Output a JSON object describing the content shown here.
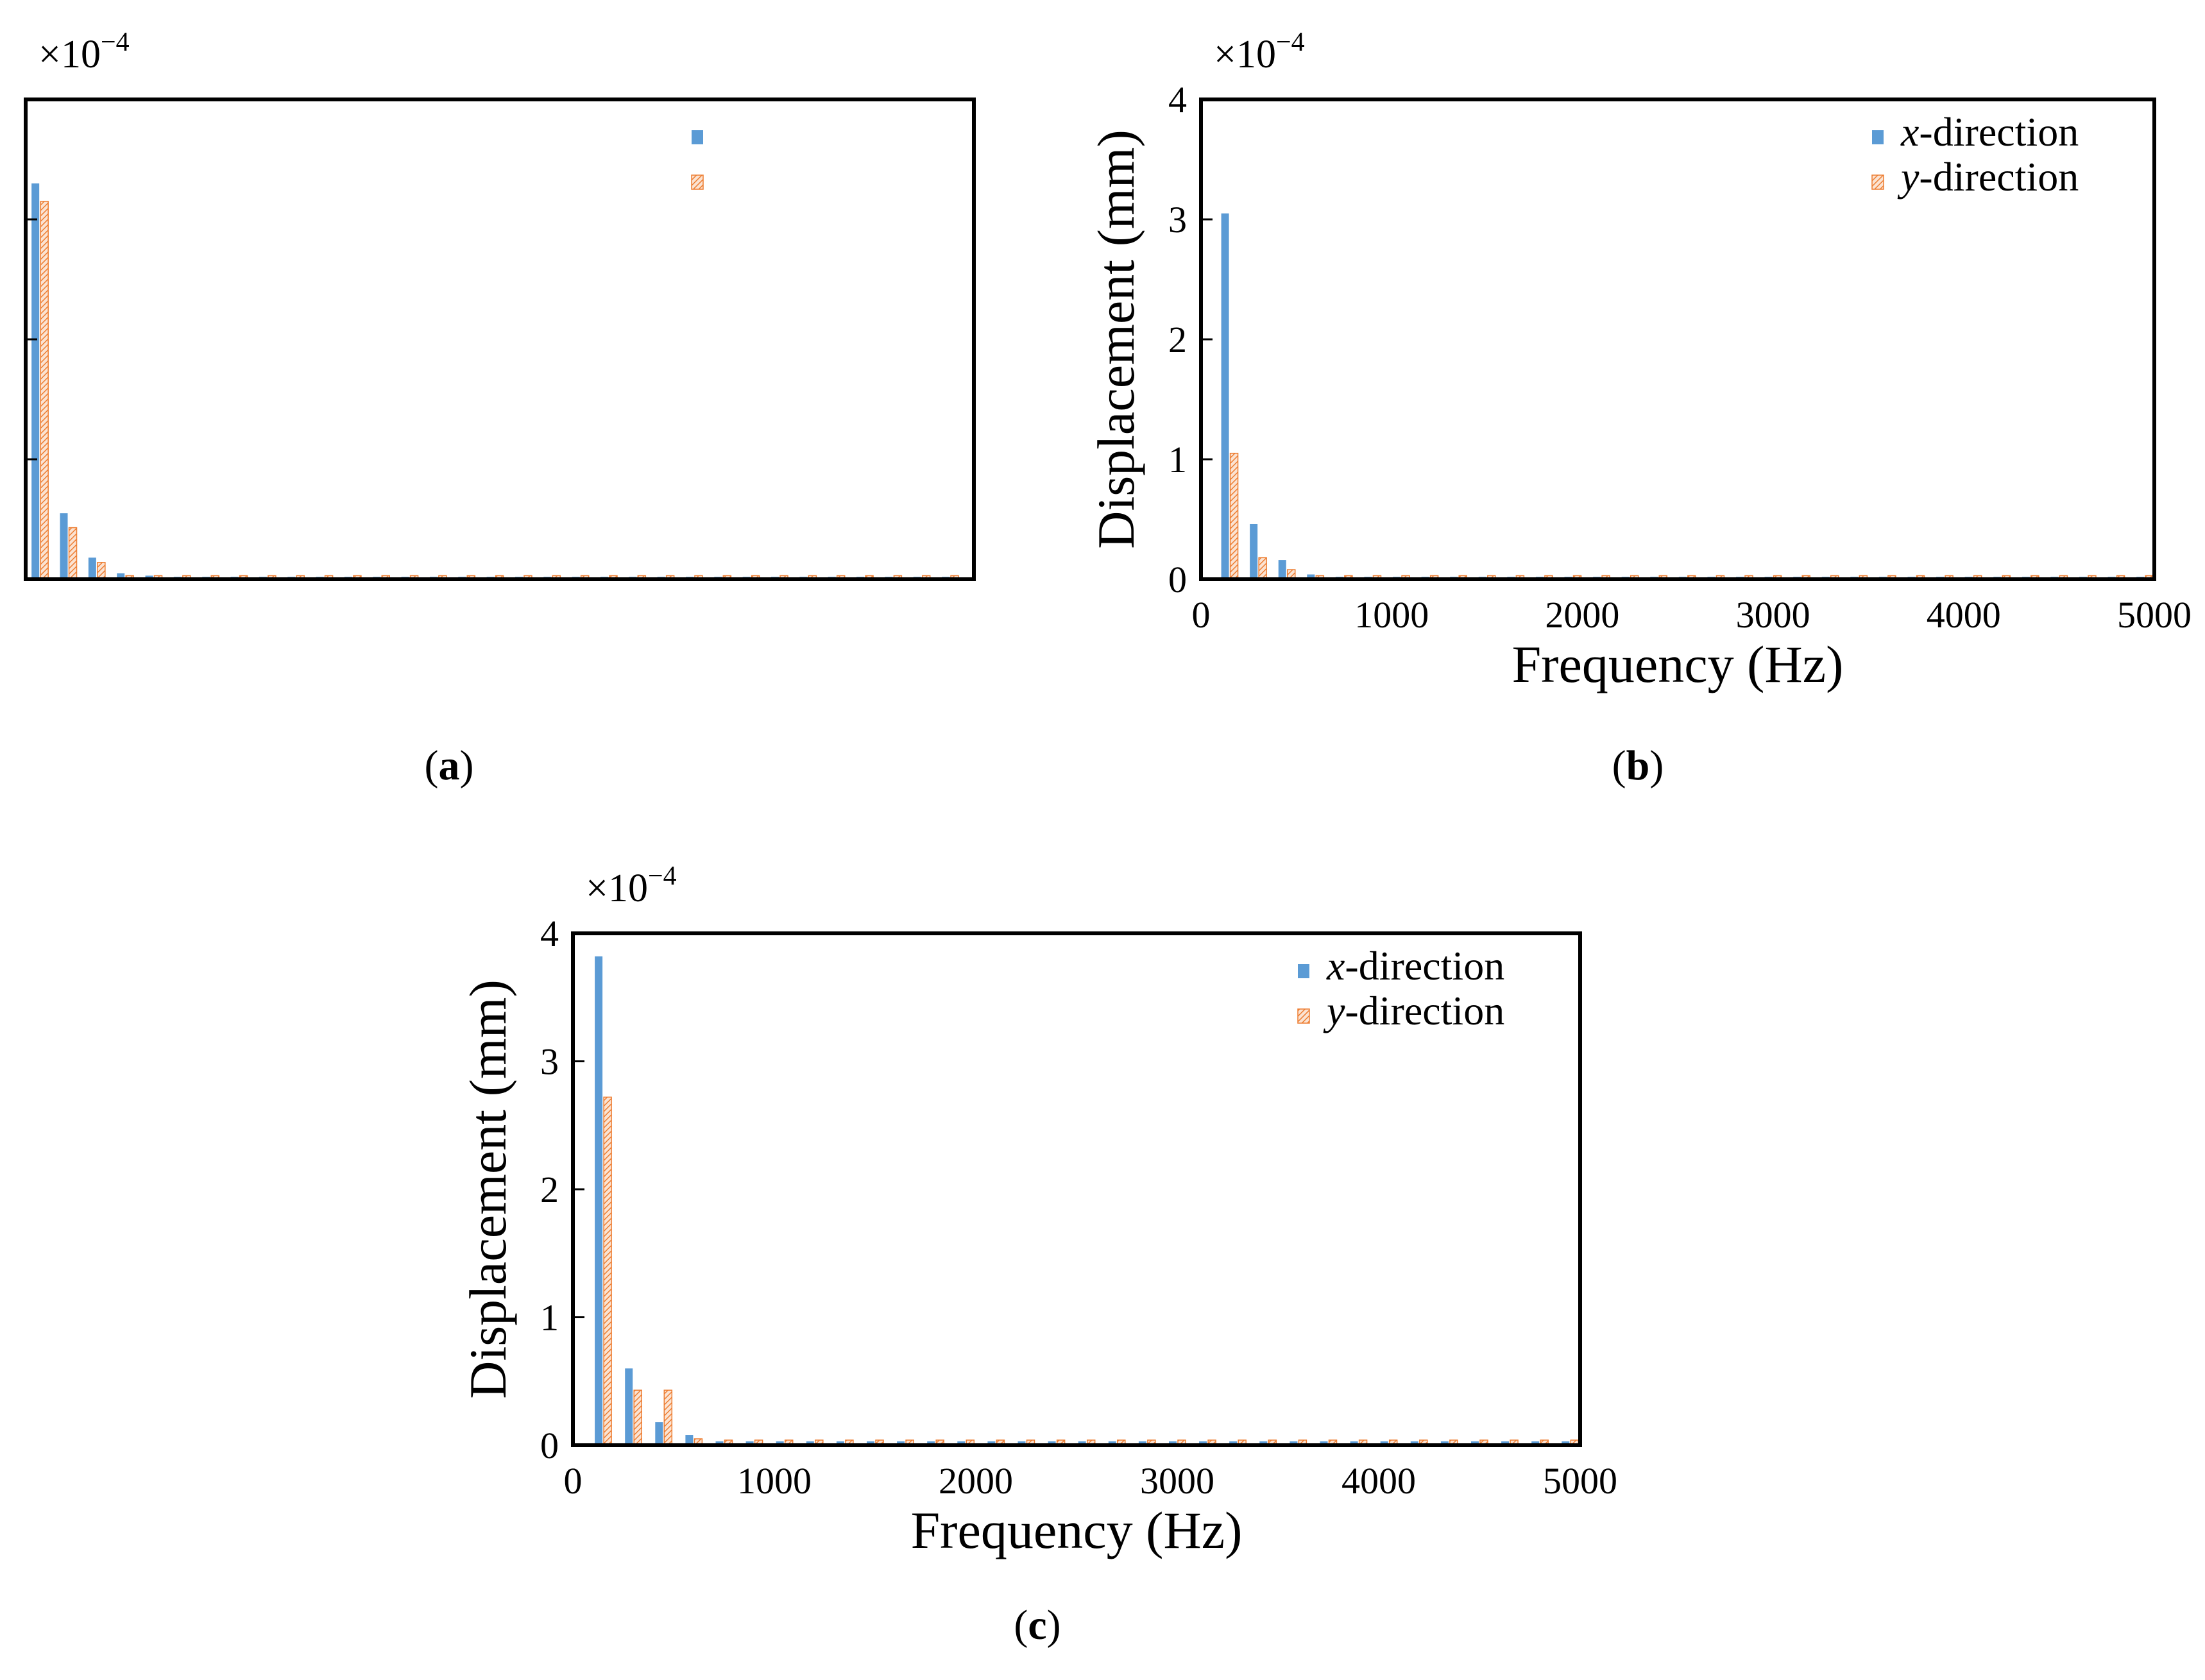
{
  "colors": {
    "x_series": "#5B9BD5",
    "y_series": "#ED7D31",
    "frame": "#000000"
  },
  "chart_data": [
    {
      "panel": "a",
      "caption_letter": "a",
      "type": "bar",
      "title": "",
      "exponent_label": "×10",
      "exponent_power": "−4",
      "xlabel": "",
      "ylabel": "",
      "xlim": [
        0,
        5000
      ],
      "ylim": [
        0,
        4
      ],
      "xticks": [],
      "yticks": [
        1,
        2,
        3
      ],
      "show_tick_labels": false,
      "legend_position": "top-right",
      "bin_width": 150,
      "series": [
        {
          "name": "",
          "fill": "solid",
          "x": [
            75,
            225,
            375,
            525,
            675,
            825,
            975,
            1125,
            1275,
            1425,
            1575,
            1725,
            1875,
            2025,
            2175,
            2325,
            2475,
            2625,
            2775,
            2925,
            3075,
            3225,
            3375,
            3525,
            3675,
            3825,
            3975,
            4125,
            4275,
            4425,
            4575,
            4725,
            4875
          ],
          "values": [
            3.3,
            0.55,
            0.18,
            0.05,
            0.03,
            0.02,
            0.02,
            0.02,
            0.02,
            0.02,
            0.02,
            0.02,
            0.02,
            0.02,
            0.02,
            0.02,
            0.02,
            0.02,
            0.02,
            0.02,
            0.02,
            0.02,
            0.02,
            0.02,
            0.02,
            0.02,
            0.02,
            0.02,
            0.02,
            0.02,
            0.02,
            0.02,
            0.02
          ]
        },
        {
          "name": "",
          "fill": "hatched",
          "x": [
            75,
            225,
            375,
            525,
            675,
            825,
            975,
            1125,
            1275,
            1425,
            1575,
            1725,
            1875,
            2025,
            2175,
            2325,
            2475,
            2625,
            2775,
            2925,
            3075,
            3225,
            3375,
            3525,
            3675,
            3825,
            3975,
            4125,
            4275,
            4425,
            4575,
            4725,
            4875
          ],
          "values": [
            3.15,
            0.43,
            0.14,
            0.03,
            0.03,
            0.03,
            0.03,
            0.03,
            0.03,
            0.03,
            0.03,
            0.03,
            0.03,
            0.03,
            0.03,
            0.03,
            0.03,
            0.03,
            0.03,
            0.03,
            0.03,
            0.03,
            0.03,
            0.03,
            0.03,
            0.03,
            0.03,
            0.03,
            0.03,
            0.03,
            0.03,
            0.03,
            0.03
          ]
        }
      ]
    },
    {
      "panel": "b",
      "caption_letter": "b",
      "type": "bar",
      "title": "",
      "exponent_label": "×10",
      "exponent_power": "−4",
      "xlabel": "Frequency (Hz)",
      "ylabel": "Displacement (mm)",
      "xlim": [
        0,
        5000
      ],
      "ylim": [
        0,
        4
      ],
      "xticks": [
        0,
        1000,
        2000,
        3000,
        4000,
        5000
      ],
      "xtick_labels": [
        "0",
        "1000",
        "2000",
        "3000",
        "4000",
        "5000"
      ],
      "yticks": [
        0,
        1,
        2,
        3,
        4
      ],
      "ytick_labels": [
        "0",
        "1",
        "2",
        "3",
        "4"
      ],
      "show_tick_labels": true,
      "legend_position": "top-right",
      "bin_width": 150,
      "series": [
        {
          "name": "x-direction",
          "name_var": "x",
          "name_rest": "-direction",
          "fill": "solid",
          "x": [
            150,
            300,
            450,
            600,
            750,
            900,
            1050,
            1200,
            1350,
            1500,
            1650,
            1800,
            1950,
            2100,
            2250,
            2400,
            2550,
            2700,
            2850,
            3000,
            3150,
            3300,
            3450,
            3600,
            3750,
            3900,
            4050,
            4200,
            4350,
            4500,
            4650,
            4800,
            4950
          ],
          "values": [
            3.05,
            0.46,
            0.16,
            0.04,
            0.02,
            0.02,
            0.02,
            0.02,
            0.02,
            0.02,
            0.02,
            0.02,
            0.02,
            0.02,
            0.02,
            0.02,
            0.02,
            0.02,
            0.02,
            0.02,
            0.02,
            0.02,
            0.02,
            0.02,
            0.02,
            0.02,
            0.02,
            0.02,
            0.02,
            0.02,
            0.02,
            0.02,
            0.02
          ]
        },
        {
          "name": "y-direction",
          "name_var": "y",
          "name_rest": "-direction",
          "fill": "hatched",
          "x": [
            150,
            300,
            450,
            600,
            750,
            900,
            1050,
            1200,
            1350,
            1500,
            1650,
            1800,
            1950,
            2100,
            2250,
            2400,
            2550,
            2700,
            2850,
            3000,
            3150,
            3300,
            3450,
            3600,
            3750,
            3900,
            4050,
            4200,
            4350,
            4500,
            4650,
            4800,
            4950
          ],
          "values": [
            1.05,
            0.18,
            0.08,
            0.03,
            0.03,
            0.03,
            0.03,
            0.03,
            0.03,
            0.03,
            0.03,
            0.03,
            0.03,
            0.03,
            0.03,
            0.03,
            0.03,
            0.03,
            0.03,
            0.03,
            0.03,
            0.03,
            0.03,
            0.03,
            0.03,
            0.03,
            0.03,
            0.03,
            0.03,
            0.03,
            0.03,
            0.03,
            0.03
          ]
        }
      ]
    },
    {
      "panel": "c",
      "caption_letter": "c",
      "type": "bar",
      "title": "",
      "exponent_label": "×10",
      "exponent_power": "−4",
      "xlabel": "Frequency (Hz)",
      "ylabel": "Displacement (mm)",
      "xlim": [
        0,
        5000
      ],
      "ylim": [
        0,
        4
      ],
      "xticks": [
        0,
        1000,
        2000,
        3000,
        4000,
        5000
      ],
      "xtick_labels": [
        "0",
        "1000",
        "2000",
        "3000",
        "4000",
        "5000"
      ],
      "yticks": [
        0,
        1,
        2,
        3,
        4
      ],
      "ytick_labels": [
        "0",
        "1",
        "2",
        "3",
        "4"
      ],
      "show_tick_labels": true,
      "legend_position": "top-right",
      "bin_width": 150,
      "series": [
        {
          "name": "x-direction",
          "name_var": "x",
          "name_rest": "-direction",
          "fill": "solid",
          "x": [
            150,
            300,
            450,
            600,
            750,
            900,
            1050,
            1200,
            1350,
            1500,
            1650,
            1800,
            1950,
            2100,
            2250,
            2400,
            2550,
            2700,
            2850,
            3000,
            3150,
            3300,
            3450,
            3600,
            3750,
            3900,
            4050,
            4200,
            4350,
            4500,
            4650,
            4800,
            4950
          ],
          "values": [
            3.82,
            0.6,
            0.18,
            0.08,
            0.03,
            0.03,
            0.03,
            0.03,
            0.03,
            0.03,
            0.03,
            0.03,
            0.03,
            0.03,
            0.03,
            0.03,
            0.03,
            0.03,
            0.03,
            0.03,
            0.03,
            0.03,
            0.03,
            0.03,
            0.03,
            0.03,
            0.03,
            0.03,
            0.03,
            0.03,
            0.03,
            0.03,
            0.03
          ]
        },
        {
          "name": "y-direction",
          "name_var": "y",
          "name_rest": "-direction",
          "fill": "hatched",
          "x": [
            150,
            300,
            450,
            600,
            750,
            900,
            1050,
            1200,
            1350,
            1500,
            1650,
            1800,
            1950,
            2100,
            2250,
            2400,
            2550,
            2700,
            2850,
            3000,
            3150,
            3300,
            3450,
            3600,
            3750,
            3900,
            4050,
            4200,
            4350,
            4500,
            4650,
            4800,
            4950
          ],
          "values": [
            2.72,
            0.43,
            0.43,
            0.05,
            0.04,
            0.04,
            0.04,
            0.04,
            0.04,
            0.04,
            0.04,
            0.04,
            0.04,
            0.04,
            0.04,
            0.04,
            0.04,
            0.04,
            0.04,
            0.04,
            0.04,
            0.04,
            0.04,
            0.04,
            0.04,
            0.04,
            0.04,
            0.04,
            0.04,
            0.04,
            0.04,
            0.04,
            0.04
          ]
        }
      ]
    }
  ]
}
